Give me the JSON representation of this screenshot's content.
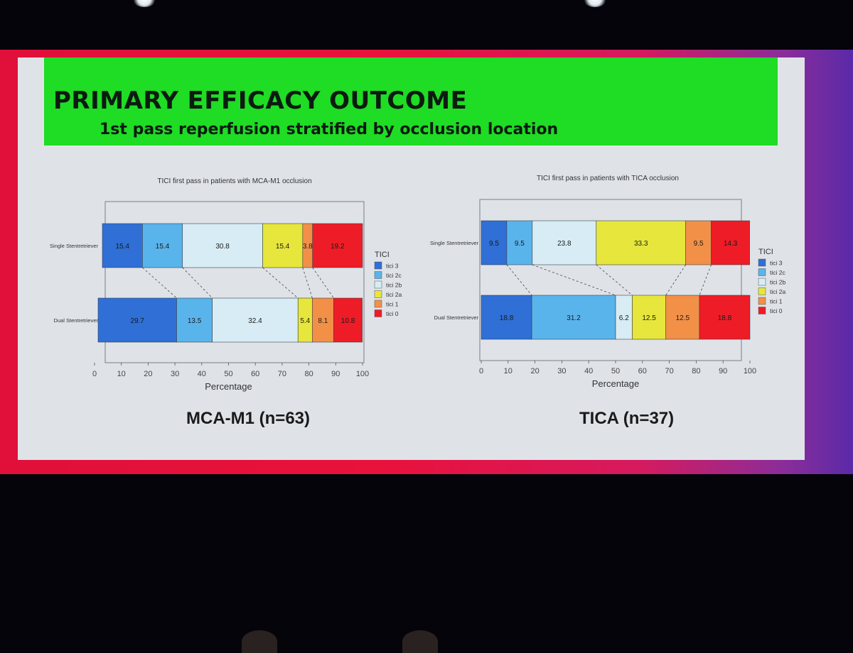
{
  "slide": {
    "title": "PRIMARY EFFICACY OUTCOME",
    "subtitle": "1st pass reperfusion stratified by occlusion location",
    "caption_left": "MCA-M1 (n=63)",
    "caption_right": "TICA (n=37)"
  },
  "colors": {
    "header_green": "#1fdc25",
    "ticis": [
      "#2f6fd6",
      "#5ab4ec",
      "#d7ecf4",
      "#e6e63c",
      "#f29048",
      "#ee1c26"
    ]
  },
  "chart_data": [
    {
      "type": "bar",
      "orientation": "horizontal-stacked",
      "title": "TICI first pass in patients with MCA-M1 occlusion",
      "xlabel": "Percentage",
      "xlim": [
        0,
        100
      ],
      "xticks": [
        "0",
        "10",
        "20",
        "30",
        "40",
        "50",
        "60",
        "70",
        "80",
        "90",
        "100"
      ],
      "categories": [
        "Single Stentretriever",
        "Dual Stentretriever"
      ],
      "legend_title": "TICI",
      "series": [
        {
          "name": "tici 3",
          "values": [
            15.4,
            29.7
          ]
        },
        {
          "name": "tici 2c",
          "values": [
            15.4,
            13.5
          ]
        },
        {
          "name": "tici 2b",
          "values": [
            30.8,
            32.4
          ]
        },
        {
          "name": "tici 2a",
          "values": [
            15.4,
            5.4
          ]
        },
        {
          "name": "tici 1",
          "values": [
            3.8,
            8.1
          ]
        },
        {
          "name": "tici 0",
          "values": [
            19.2,
            10.8
          ]
        }
      ]
    },
    {
      "type": "bar",
      "orientation": "horizontal-stacked",
      "title": "TICI first pass in patients with TICA occlusion",
      "xlabel": "Percentage",
      "xlim": [
        0,
        100
      ],
      "xticks": [
        "0",
        "10",
        "20",
        "30",
        "40",
        "50",
        "60",
        "70",
        "80",
        "90",
        "100"
      ],
      "categories": [
        "Single Stentretriever",
        "Dual Stentretriever"
      ],
      "legend_title": "TICI",
      "series": [
        {
          "name": "tici 3",
          "values": [
            9.5,
            18.8
          ]
        },
        {
          "name": "tici 2c",
          "values": [
            9.5,
            31.2
          ]
        },
        {
          "name": "tici 2b",
          "values": [
            23.8,
            6.2
          ]
        },
        {
          "name": "tici 2a",
          "values": [
            33.3,
            12.5
          ]
        },
        {
          "name": "tici 1",
          "values": [
            9.5,
            12.5
          ]
        },
        {
          "name": "tici 0",
          "values": [
            14.3,
            18.8
          ]
        }
      ]
    }
  ]
}
